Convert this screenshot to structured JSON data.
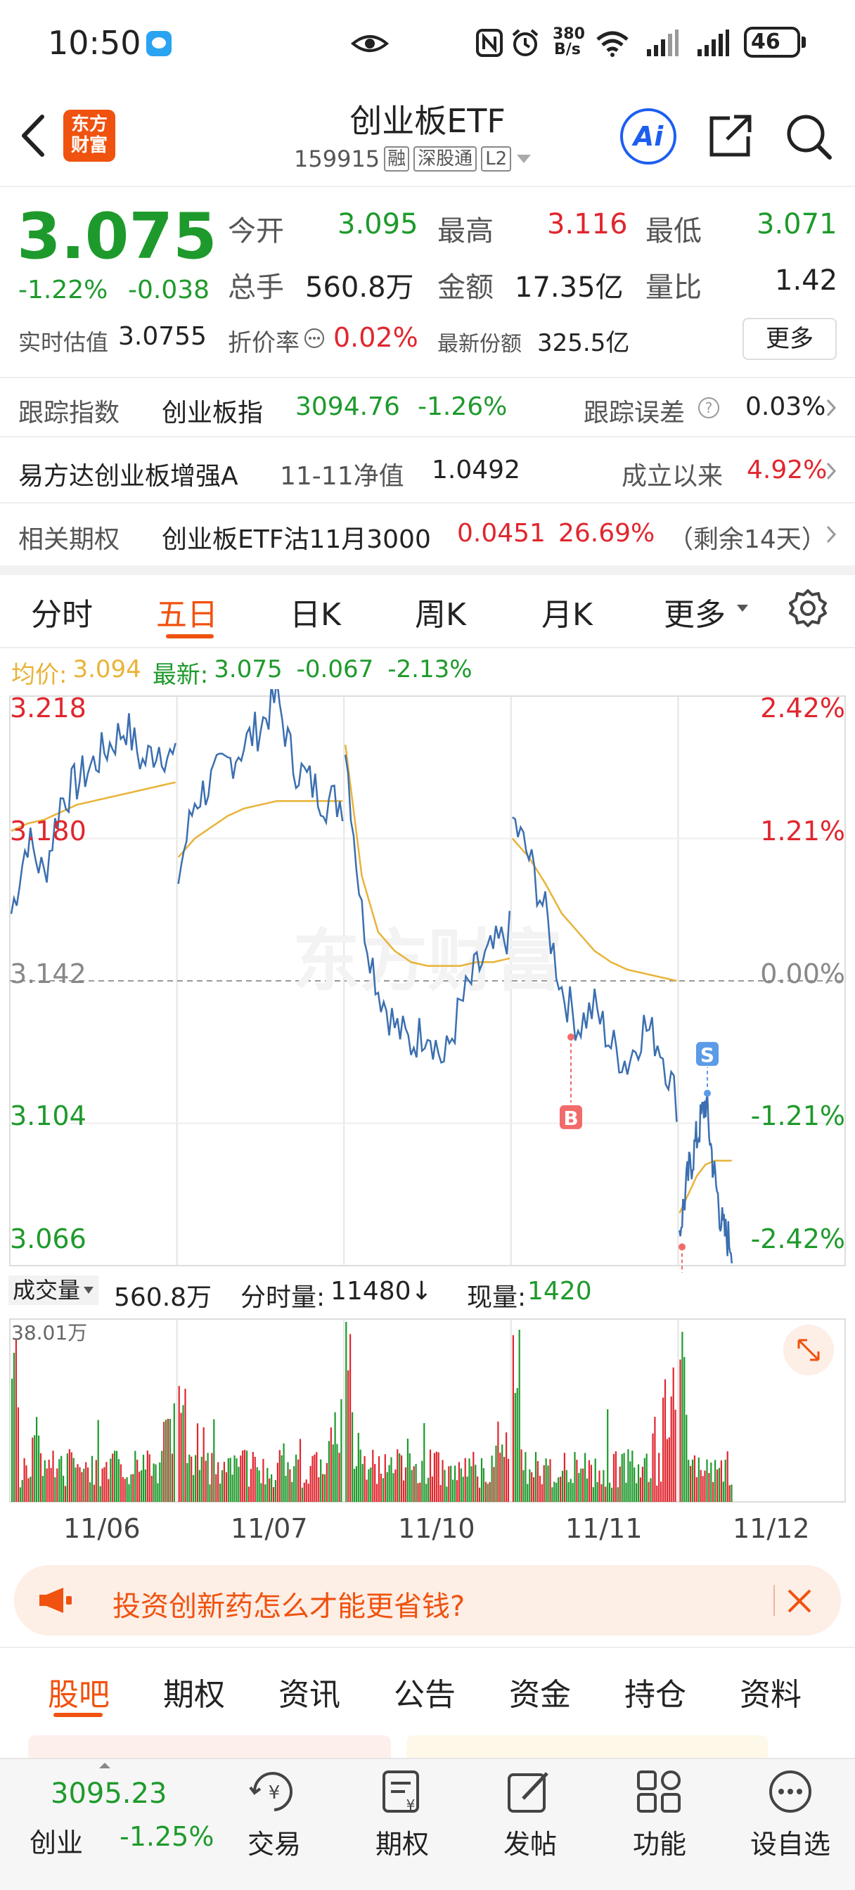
{
  "status_bar": {
    "time": "10:50",
    "net_speed_top": "380",
    "net_speed_bottom": "B/s",
    "battery": "46"
  },
  "header": {
    "logo_line1": "东方",
    "logo_line2": "财富",
    "title": "创业板ETF",
    "code": "159915",
    "tag_margin": "融",
    "tag_connect": "深股通",
    "tag_level": "L2",
    "ai_label": "Ai"
  },
  "quote": {
    "price": "3.075",
    "change_pct": "-1.22%",
    "change": "-0.038",
    "open_label": "今开",
    "open": "3.095",
    "high_label": "最高",
    "high": "3.116",
    "low_label": "最低",
    "low": "3.071",
    "volume_label": "总手",
    "volume": "560.8万",
    "amount_label": "金额",
    "amount": "17.35亿",
    "ratio_label": "量比",
    "ratio": "1.42",
    "iopv_label": "实时估值",
    "iopv": "3.0755",
    "premium_label": "折价率",
    "premium": "0.02%",
    "shares_label": "最新份额",
    "shares": "325.5亿",
    "more_label": "更多"
  },
  "info_rows": [
    {
      "label": "跟踪指数",
      "name": "创业板指",
      "value": "3094.76",
      "change": "-1.26%",
      "right_label": "跟踪误差",
      "right_value": "0.03%"
    },
    {
      "label": "易方达创业板增强A",
      "name": "11-11净值",
      "value": "1.0492",
      "right_label": "成立以来",
      "right_value": "4.92%"
    },
    {
      "label": "相关期权",
      "name": "创业板ETF沽11月3000",
      "value": "0.0451",
      "change": "26.69%",
      "note": "（剩余14天）"
    }
  ],
  "chart_tabs": [
    "分时",
    "五日",
    "日K",
    "周K",
    "月K",
    "更多"
  ],
  "active_tab": "五日",
  "legend": {
    "avg_label": "均价:",
    "avg": "3.094",
    "latest_label": "最新:",
    "latest": "3.075",
    "diff": "-0.067",
    "diff_pct": "-2.13%"
  },
  "watermark": "东方财富",
  "y_left": [
    "3.218",
    "3.180",
    "3.142",
    "3.104",
    "3.066"
  ],
  "y_right": [
    "2.42%",
    "1.21%",
    "0.00%",
    "-1.21%",
    "-2.42%"
  ],
  "markers": {
    "buy": "B",
    "sell": "S"
  },
  "volume_bar": {
    "label": "成交量",
    "total": "560.8万",
    "tick_label": "分时量:",
    "tick": "11480↓",
    "now_label": "现量:",
    "now": "1420",
    "max": "38.01万"
  },
  "dates": [
    "11/06",
    "11/07",
    "11/10",
    "11/11",
    "11/12"
  ],
  "chart_data": {
    "type": "line",
    "title": "",
    "x": [
      "11/06",
      "11/07",
      "11/10",
      "11/11",
      "11/12"
    ],
    "ylim": [
      3.066,
      3.218
    ],
    "prev_close": 3.142,
    "series": [
      {
        "name": "最新",
        "day_values": [
          [
            3.16,
            3.18,
            3.17,
            3.19,
            3.195,
            3.2,
            3.205,
            3.21,
            3.2,
            3.205,
            3.2
          ],
          [
            3.17,
            3.19,
            3.195,
            3.2,
            3.205,
            3.21,
            3.218,
            3.2,
            3.195,
            3.19,
            3.19
          ],
          [
            3.205,
            3.16,
            3.14,
            3.13,
            3.125,
            3.13,
            3.12,
            3.135,
            3.145,
            3.15,
            3.155
          ],
          [
            3.185,
            3.175,
            3.16,
            3.14,
            3.13,
            3.135,
            3.125,
            3.12,
            3.13,
            3.125,
            3.11
          ],
          [
            3.075,
            3.09,
            3.1,
            3.11,
            3.09,
            3.075,
            3.072
          ]
        ]
      },
      {
        "name": "均价",
        "day_values": [
          [
            3.182,
            3.184,
            3.185,
            3.187,
            3.189,
            3.19,
            3.191,
            3.192,
            3.193,
            3.194,
            3.195
          ],
          [
            3.175,
            3.18,
            3.183,
            3.186,
            3.188,
            3.189,
            3.19,
            3.19,
            3.19,
            3.19,
            3.19
          ],
          [
            3.205,
            3.17,
            3.155,
            3.15,
            3.147,
            3.146,
            3.146,
            3.146,
            3.147,
            3.147,
            3.148
          ],
          [
            3.18,
            3.175,
            3.168,
            3.16,
            3.155,
            3.15,
            3.147,
            3.145,
            3.144,
            3.143,
            3.142
          ],
          [
            3.08,
            3.085,
            3.09,
            3.093,
            3.094,
            3.094,
            3.094
          ]
        ]
      }
    ],
    "volume_bars": {
      "max": "38.01万"
    },
    "legend": "top-left"
  },
  "ad": {
    "text": "投资创新药怎么才能更省钱?"
  },
  "bottom_tabs": [
    "股吧",
    "期权",
    "资讯",
    "公告",
    "资金",
    "持仓",
    "资料"
  ],
  "active_bottom": "股吧",
  "bottom_nav": {
    "index_value": "3095.23",
    "index_name": "创业",
    "index_change": "-1.25%",
    "trade": "交易",
    "options": "期权",
    "post": "发帖",
    "function": "功能",
    "watch": "设自选"
  }
}
